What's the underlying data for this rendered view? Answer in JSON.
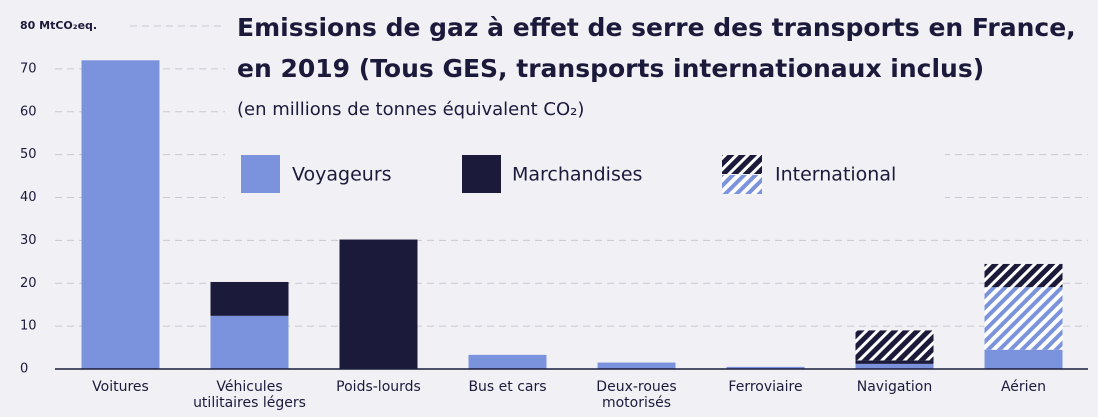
{
  "chart_data": {
    "type": "stacked-bar",
    "title": [
      "Emissions de gaz à effet de serre des transports en France,",
      "en 2019 (Tous GES, transports internationaux inclus)"
    ],
    "subtitle": "(en millions de tonnes équivalent CO₂)",
    "categories": [
      "Voitures",
      "Véhicules utilitaires légers",
      "Poids-lourds",
      "Bus et cars",
      "Deux-roues motorisés",
      "Ferroviaire",
      "Navigation",
      "Aérien"
    ],
    "series": [
      {
        "name": "Voyageurs",
        "color": "#7b93dc",
        "values": [
          72,
          12.4,
          0,
          3.3,
          1.5,
          0.5,
          1.2,
          4.5
        ]
      },
      {
        "name": "Marchandises",
        "color": "#1b1a3b",
        "values": [
          0,
          7.9,
          30.2,
          0,
          0,
          0,
          0.8,
          0
        ]
      }
    ],
    "international": {
      "name": "International",
      "voyageurs": [
        0,
        0,
        0,
        0,
        0,
        0,
        0,
        14.6
      ],
      "marchandises": [
        0,
        0,
        0,
        0,
        0,
        0,
        7.0,
        5.4
      ]
    },
    "ylim": [
      0,
      80
    ],
    "yticks": [
      0,
      10,
      20,
      30,
      40,
      50,
      60,
      70,
      {
        "value": 80,
        "label": "80 MtCO₂eq."
      }
    ],
    "grid": true
  }
}
